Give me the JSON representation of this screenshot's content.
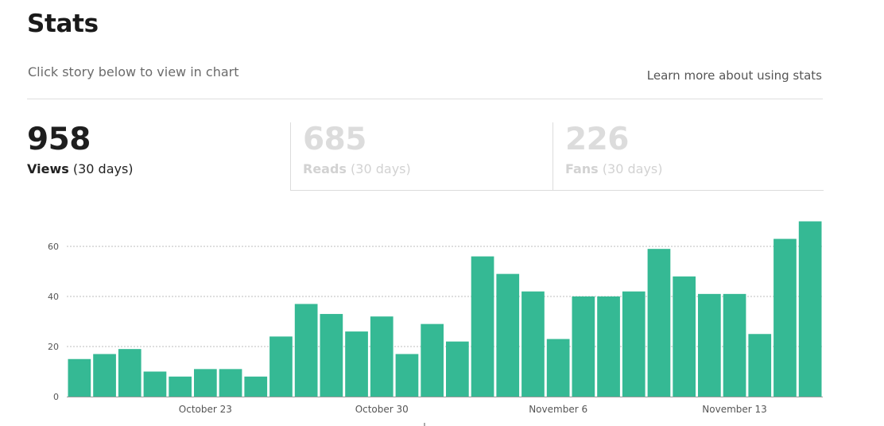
{
  "header": {
    "title": "Stats",
    "subtitle": "Click story below to view in chart",
    "learn_more": "Learn more about using stats"
  },
  "tabs": [
    {
      "value": "958",
      "name": "Views",
      "period": "(30 days)",
      "active": true
    },
    {
      "value": "685",
      "name": "Reads",
      "period": "(30 days)",
      "active": false
    },
    {
      "value": "226",
      "name": "Fans",
      "period": "(30 days)",
      "active": false
    }
  ],
  "colors": {
    "bar": "#35b994",
    "grid": "#bdbdbd",
    "axis": "#9a9a9a"
  },
  "chart_data": {
    "type": "bar",
    "series": [
      {
        "values": [
          15,
          17,
          19,
          10,
          8,
          11,
          11,
          8,
          24,
          37,
          33,
          26,
          32,
          17,
          29,
          22,
          56,
          49,
          42,
          23,
          40,
          40,
          42,
          59,
          48,
          41,
          41,
          25,
          63,
          70
        ]
      }
    ],
    "yticks": [
      0,
      20,
      40,
      60
    ],
    "ylim": [
      0,
      70
    ],
    "xtick_labels": [
      {
        "label": "October 23",
        "index": 5.5
      },
      {
        "label": "October 30",
        "index": 12.5
      },
      {
        "label": "November 6",
        "index": 19.5
      },
      {
        "label": "November 13",
        "index": 26.5
      }
    ],
    "grid": true
  }
}
